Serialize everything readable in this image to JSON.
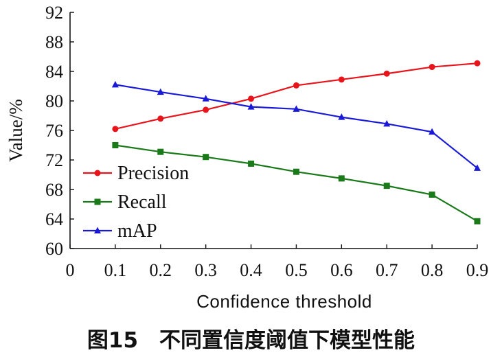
{
  "figure": {
    "caption": "图15　不同置信度阈值下模型性能"
  },
  "chart_data": {
    "type": "line",
    "xlabel": "Confidence threshold",
    "ylabel": "Value/%",
    "xlim": [
      0,
      0.9
    ],
    "ylim": [
      60,
      92
    ],
    "xticks": [
      "0",
      "0.1",
      "0.2",
      "0.3",
      "0.4",
      "0.5",
      "0.6",
      "0.7",
      "0.8",
      "0.9"
    ],
    "yticks": [
      "60",
      "64",
      "68",
      "72",
      "76",
      "80",
      "84",
      "88",
      "92"
    ],
    "grid": false,
    "legend_position": "bottom-left",
    "x": [
      0.1,
      0.2,
      0.3,
      0.4,
      0.5,
      0.6,
      0.7,
      0.8,
      0.9
    ],
    "series": [
      {
        "name": "Precision",
        "color": "#e8141c",
        "marker": "circle",
        "values": [
          76.2,
          77.6,
          78.8,
          80.3,
          82.1,
          82.9,
          83.7,
          84.6,
          85.1
        ]
      },
      {
        "name": "Recall",
        "color": "#1a7a1a",
        "marker": "square",
        "values": [
          74.0,
          73.1,
          72.4,
          71.5,
          70.4,
          69.5,
          68.5,
          67.3,
          63.7
        ]
      },
      {
        "name": "mAP",
        "color": "#1a1ad6",
        "marker": "triangle",
        "values": [
          82.2,
          81.2,
          80.3,
          79.2,
          78.9,
          77.8,
          76.9,
          75.8,
          70.9
        ]
      }
    ]
  }
}
